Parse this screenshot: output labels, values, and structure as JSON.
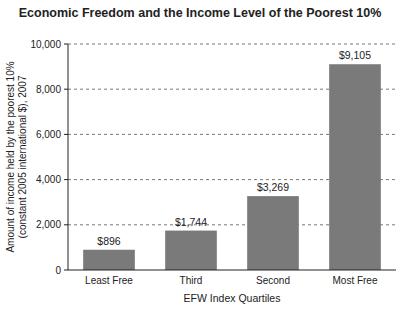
{
  "chart_data": {
    "type": "bar",
    "title": "Economic Freedom and the Income Level of the Poorest 10%",
    "x_label": "EFW Index Quartiles",
    "y_label": [
      "Amount of income held by the poorest 10%",
      "(constant 2005 international $), 2007"
    ],
    "categories": [
      "Least Free",
      "Third",
      "Second",
      "Most Free"
    ],
    "values": [
      896,
      1744,
      3269,
      9105
    ],
    "value_labels": [
      "$896",
      "$1,744",
      "$3,269",
      "$9,105"
    ],
    "data_labels": true,
    "color": "#7a7a7a",
    "ylim": [
      0,
      10000
    ],
    "yticks": [
      0,
      {
        "value": 2000,
        "label": "2,000"
      },
      {
        "value": 4000,
        "label": "4,000"
      },
      {
        "value": 6000,
        "label": "6,000"
      },
      {
        "value": 8000,
        "label": "8,000"
      },
      {
        "value": 10000,
        "label": "10,000"
      }
    ],
    "grid": true
  }
}
